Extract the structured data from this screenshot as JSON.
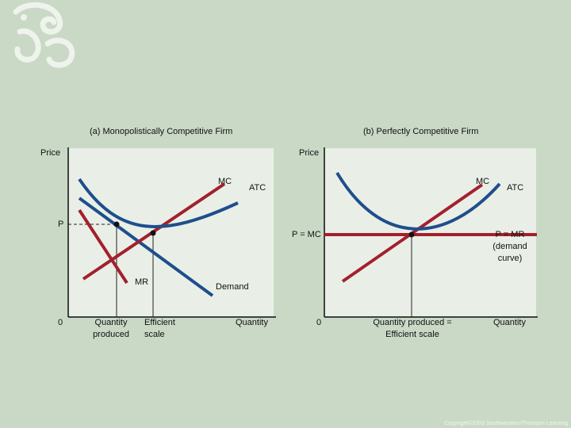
{
  "panel_a": {
    "title": "(a) Monopolistically Competitive Firm",
    "y_axis_label": "Price",
    "x_axis_label": "Quantity",
    "origin": "0",
    "price_label": "P",
    "mc_label": "MC",
    "atc_label": "ATC",
    "mr_label": "MR",
    "demand_label": "Demand",
    "qty_produced_label_1": "Quantity",
    "qty_produced_label_2": "produced",
    "efficient_label_1": "Efficient",
    "efficient_label_2": "scale"
  },
  "panel_b": {
    "title": "(b) Perfectly Competitive Firm",
    "y_axis_label": "Price",
    "x_axis_label": "Quantity",
    "origin": "0",
    "p_mc_label": "P = MC",
    "mc_label": "MC",
    "atc_label": "ATC",
    "p_mr_label_1": "P = MR",
    "p_mr_label_2": "(demand",
    "p_mr_label_3": "curve)",
    "qty_label_1": "Quantity produced =",
    "qty_label_2": "Efficient scale"
  },
  "colors": {
    "atc": "#1f4e8c",
    "mc": "#a3202e",
    "demand": "#1f4e8c",
    "mr": "#a3202e",
    "price_line": "#a3202e"
  },
  "copyright": "Copyright©2003  Southwestern/Thomson Learning",
  "chart_data": [
    {
      "type": "line",
      "title": "(a) Monopolistically Competitive Firm",
      "xlabel": "Quantity",
      "ylabel": "Price",
      "series": [
        {
          "name": "MC",
          "kind": "straight",
          "from": [
            0.08,
            0.22
          ],
          "to": [
            0.76,
            0.82
          ]
        },
        {
          "name": "ATC",
          "kind": "u-curve",
          "min": [
            0.47,
            0.56
          ],
          "left": [
            0.06,
            0.88
          ],
          "right": [
            0.83,
            0.68
          ]
        },
        {
          "name": "Demand",
          "kind": "straight",
          "from": [
            0.06,
            0.8
          ],
          "to": [
            0.83,
            0.12
          ]
        },
        {
          "name": "MR",
          "kind": "straight",
          "from": [
            0.06,
            0.62
          ],
          "to": [
            0.3,
            0.18
          ]
        }
      ],
      "markers": {
        "quantity_produced": 0.26,
        "efficient_scale": 0.47,
        "price_level": 0.62
      }
    },
    {
      "type": "line",
      "title": "(b) Perfectly Competitive Firm",
      "xlabel": "Quantity",
      "ylabel": "Price",
      "series": [
        {
          "name": "MC",
          "kind": "straight",
          "from": [
            0.15,
            0.18
          ],
          "to": [
            0.8,
            0.88
          ]
        },
        {
          "name": "ATC",
          "kind": "u-curve",
          "min": [
            0.47,
            0.56
          ],
          "left": [
            0.1,
            0.95
          ],
          "right": [
            0.93,
            0.88
          ]
        },
        {
          "name": "P = MR",
          "kind": "horizontal",
          "y": 0.56
        }
      ],
      "markers": {
        "quantity_produced_efficient_scale": 0.47
      }
    }
  ]
}
